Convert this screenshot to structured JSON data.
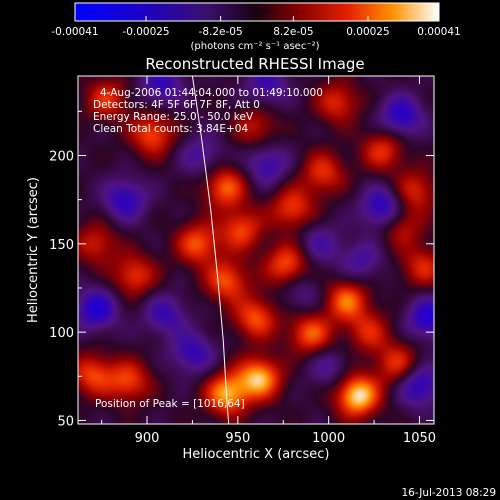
{
  "chart_data": {
    "type": "heatmap",
    "title": "Reconstructed RHESSI Image",
    "xlabel": "Heliocentric X (arcsec)",
    "ylabel": "Heliocentric Y (arcsec)",
    "xlim": [
      862,
      1058
    ],
    "ylim": [
      48,
      245
    ],
    "x_ticks": [
      900,
      950,
      1000,
      1050
    ],
    "y_ticks": [
      50,
      100,
      150,
      200
    ],
    "colorbar": {
      "range": [
        -0.00041,
        0.00041
      ],
      "tick_values": [
        -0.00041,
        -0.00025,
        -8.2e-05,
        8.2e-05,
        0.00025,
        0.00041
      ],
      "tick_labels": [
        "-0.00041",
        "-0.00025",
        "-8.2e-05",
        "8.2e-05",
        "0.00025",
        "0.00041"
      ],
      "unit_label": "(photons cm⁻² s⁻¹ asec⁻²)"
    },
    "annotations": {
      "time": "4-Aug-2006 01:44:04.000 to 01:49:10.000",
      "detectors": "Detectors: 4F 5F 6F 7F 8F, Att 0",
      "energy": "Energy Range: 25.0 - 50.0 keV",
      "clean": "Clean    Total counts: 3.84E+04",
      "peak": "Position of Peak = [1016,64]"
    },
    "sources": [
      {
        "x": 1016,
        "y": 64,
        "value": 0.00041
      },
      {
        "x": 962,
        "y": 74,
        "value": 0.00036
      },
      {
        "x": 944,
        "y": 65,
        "value": 0.00034
      },
      {
        "x": 870,
        "y": 76,
        "value": 0.00024
      },
      {
        "x": 890,
        "y": 72,
        "value": 0.00024
      },
      {
        "x": 1038,
        "y": 82,
        "value": 0.00022
      },
      {
        "x": 990,
        "y": 99,
        "value": 0.00027
      },
      {
        "x": 960,
        "y": 108,
        "value": 0.00026
      },
      {
        "x": 1010,
        "y": 118,
        "value": 0.00028
      },
      {
        "x": 944,
        "y": 129,
        "value": 0.00026
      },
      {
        "x": 977,
        "y": 138,
        "value": 0.00027
      },
      {
        "x": 928,
        "y": 150,
        "value": 0.00026
      },
      {
        "x": 952,
        "y": 158,
        "value": 0.00024
      },
      {
        "x": 980,
        "y": 170,
        "value": 0.00024
      },
      {
        "x": 943,
        "y": 182,
        "value": 0.00027
      },
      {
        "x": 997,
        "y": 190,
        "value": 0.00022
      },
      {
        "x": 1030,
        "y": 203,
        "value": 0.00022
      },
      {
        "x": 1048,
        "y": 180,
        "value": 0.0002
      },
      {
        "x": 1052,
        "y": 137,
        "value": 0.0002
      },
      {
        "x": 893,
        "y": 132,
        "value": 0.00023
      },
      {
        "x": 872,
        "y": 150,
        "value": 0.00019
      },
      {
        "x": 903,
        "y": 212,
        "value": 0.00026
      },
      {
        "x": 878,
        "y": 232,
        "value": 0.00021
      },
      {
        "x": 960,
        "y": 216,
        "value": 0.00017
      },
      {
        "x": 1005,
        "y": 230,
        "value": 0.00021
      },
      {
        "x": 1040,
        "y": 160,
        "value": 0.00018
      },
      {
        "x": 1022,
        "y": 100,
        "value": 0.00019
      },
      {
        "x": 872,
        "y": 113,
        "value": -0.00025
      },
      {
        "x": 888,
        "y": 175,
        "value": -0.00022
      },
      {
        "x": 925,
        "y": 88,
        "value": -0.0002
      },
      {
        "x": 1050,
        "y": 70,
        "value": -0.00024
      },
      {
        "x": 1055,
        "y": 108,
        "value": -0.00025
      },
      {
        "x": 1030,
        "y": 170,
        "value": -0.00026
      },
      {
        "x": 1040,
        "y": 222,
        "value": -0.00024
      },
      {
        "x": 966,
        "y": 195,
        "value": -0.00019
      },
      {
        "x": 995,
        "y": 150,
        "value": -0.00014
      },
      {
        "x": 908,
        "y": 240,
        "value": -0.0002
      },
      {
        "x": 1000,
        "y": 80,
        "value": -0.00013
      },
      {
        "x": 985,
        "y": 122,
        "value": -0.00012
      },
      {
        "x": 910,
        "y": 110,
        "value": -0.00018
      },
      {
        "x": 1018,
        "y": 140,
        "value": -0.00015
      },
      {
        "x": 966,
        "y": 240,
        "value": -0.00018
      },
      {
        "x": 930,
        "y": 200,
        "value": -0.00015
      }
    ],
    "limb_curve": [
      [
        925,
        245
      ],
      [
        930,
        210
      ],
      [
        935,
        170
      ],
      [
        939,
        130
      ],
      [
        942,
        95
      ],
      [
        944,
        60
      ],
      [
        945,
        48
      ]
    ]
  },
  "footer": {
    "date_stamp": "16-Jul-2013 08:29"
  }
}
